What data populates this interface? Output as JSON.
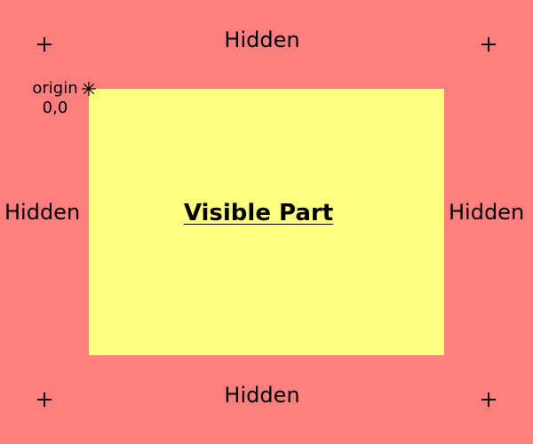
{
  "diagram": {
    "visible_label": "Visible Part",
    "hidden_labels": {
      "top": "Hidden",
      "bottom": "Hidden",
      "left": "Hidden",
      "right": "Hidden"
    },
    "origin": {
      "name": "origin",
      "coords": "0,0"
    },
    "markers": [
      "plus-icon",
      "plus-icon",
      "plus-icon",
      "plus-icon"
    ],
    "origin_icon": "asterisk-icon"
  },
  "colors": {
    "hidden_area": "#ff7f7f",
    "visible_area": "#ffff7f",
    "text": "#000000"
  }
}
